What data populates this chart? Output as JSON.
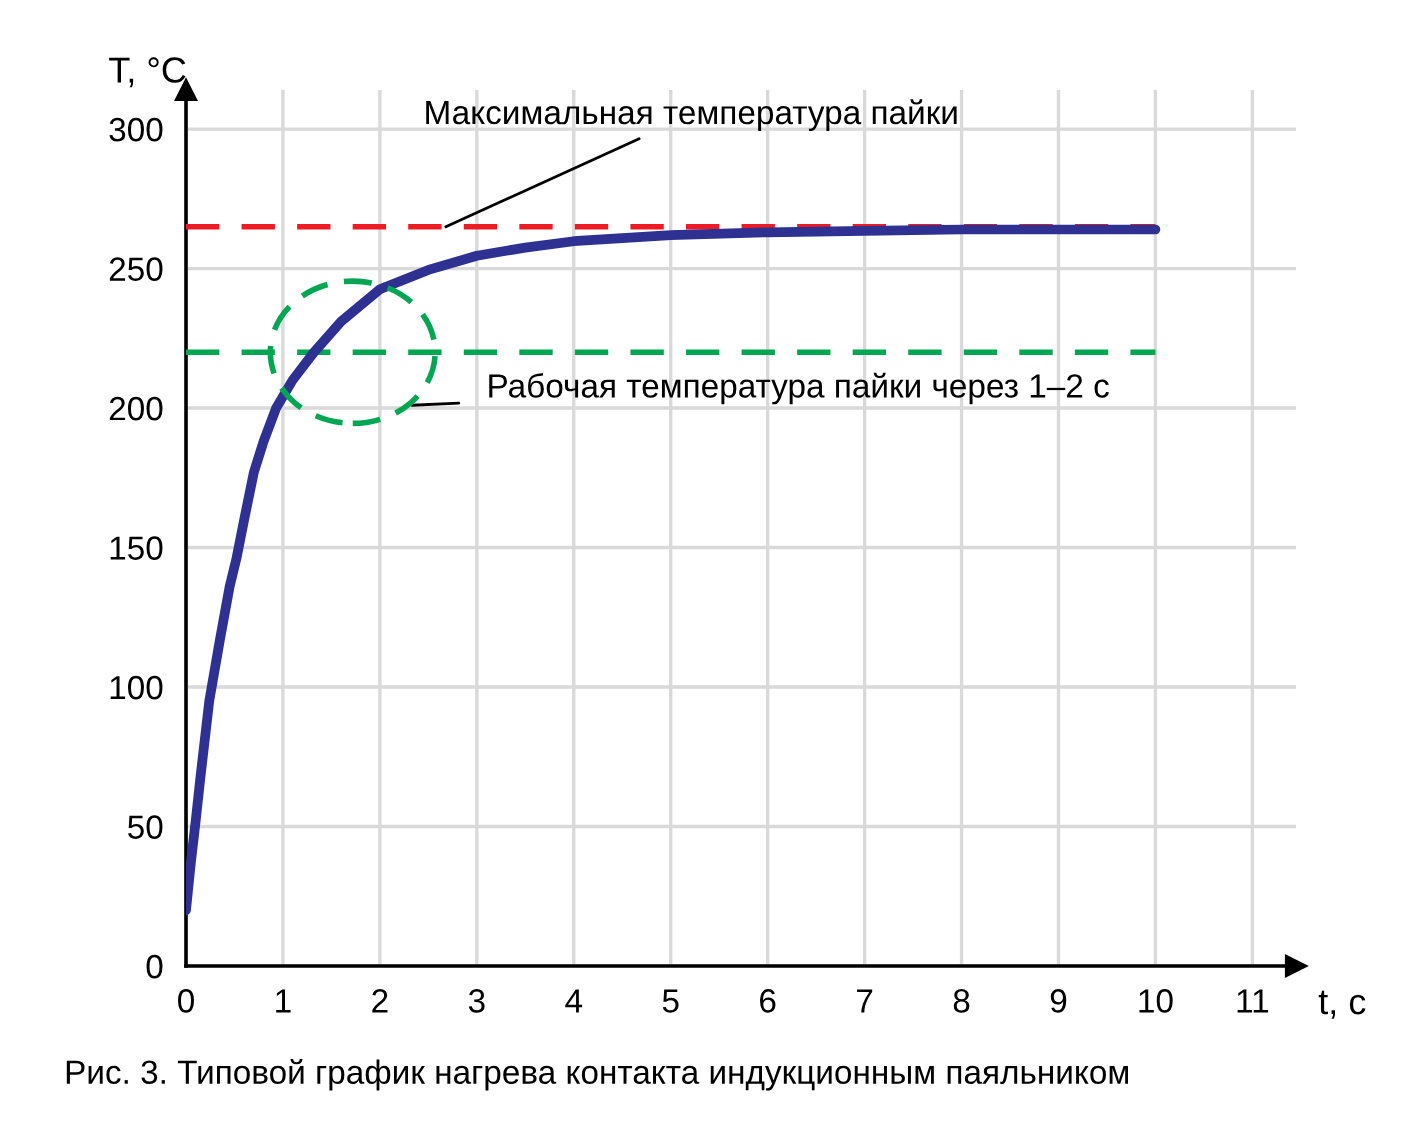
{
  "chart_data": {
    "type": "line",
    "xlabel": "t, c",
    "ylabel": "T, °C",
    "x": [
      0,
      0.05,
      0.1,
      0.15,
      0.24,
      0.35,
      0.45,
      0.52,
      0.6,
      0.7,
      0.8,
      0.93,
      1.1,
      1.32,
      1.6,
      2,
      2.5,
      3,
      3.5,
      4,
      5,
      6,
      7,
      8,
      9,
      10
    ],
    "series": [
      {
        "color": "#2e3192",
        "values": [
          20,
          37,
          52,
          68,
          95,
          117,
          136,
          146,
          160,
          177,
          188,
          200,
          210,
          220,
          231,
          242.6,
          249.5,
          254.6,
          257.5,
          259.8,
          262,
          263,
          263.5,
          264,
          264,
          264
        ]
      }
    ],
    "xlim": [
      0,
      11.45
    ],
    "ylim": [
      0,
      314
    ],
    "xticks": [
      0,
      1,
      2,
      3,
      4,
      5,
      6,
      7,
      8,
      9,
      10,
      11
    ],
    "yticks": [
      0,
      50,
      100,
      150,
      200,
      250,
      300
    ],
    "grid": true,
    "marker": "none",
    "line_style": "solid",
    "ref_lines": [
      {
        "axis": "y",
        "value": 265,
        "label": "Максимальная температура пайки",
        "color": "#ed1c24",
        "line_style": "dashed"
      },
      {
        "axis": "y",
        "value": 220,
        "label": "Рабочая температура пайки через 1–2 с",
        "color": "#00a651",
        "line_style": "dashed"
      }
    ],
    "annotations": [
      "Рис. 3. Типовой график нагрева контакта индукционным паяльником"
    ]
  }
}
